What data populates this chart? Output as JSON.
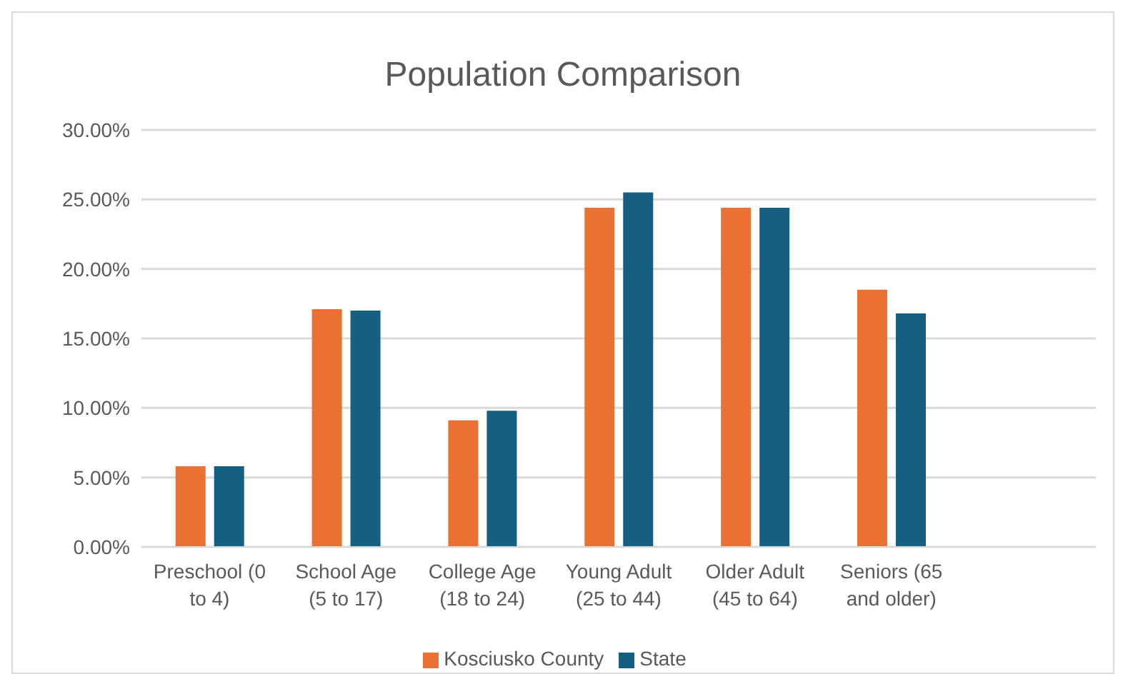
{
  "chart_data": {
    "type": "bar",
    "title": "Population Comparison",
    "categories": [
      "Preschool (0 to 4)",
      "School Age (5 to 17)",
      "College Age (18 to 24)",
      "Young Adult (25 to 44)",
      "Older Adult (45 to 64)",
      "Seniors (65 and older)",
      null
    ],
    "series": [
      {
        "name": "Kosciusko County",
        "color": "#e97132",
        "values": [
          5.8,
          17.1,
          9.1,
          24.4,
          24.4,
          18.5,
          null
        ]
      },
      {
        "name": "State",
        "color": "#156082",
        "values": [
          5.8,
          17.0,
          9.8,
          25.5,
          24.4,
          16.8,
          null
        ]
      }
    ],
    "ylim": [
      0,
      30
    ],
    "yticks": [
      {
        "value": 0,
        "label": "0.00%"
      },
      {
        "value": 5,
        "label": "5.00%"
      },
      {
        "value": 10,
        "label": "10.00%"
      },
      {
        "value": 15,
        "label": "15.00%"
      },
      {
        "value": 20,
        "label": "20.00%"
      },
      {
        "value": 25,
        "label": "25.00%"
      },
      {
        "value": 30,
        "label": "30.00%"
      }
    ],
    "grid": "y",
    "legend": "bottom"
  }
}
